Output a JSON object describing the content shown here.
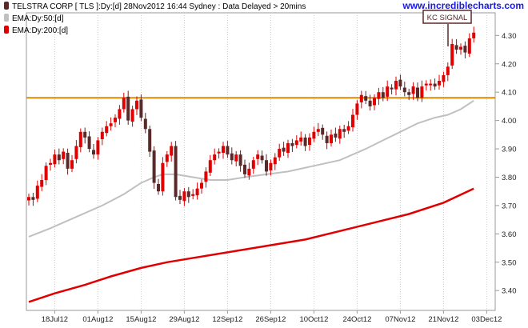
{
  "legend": {
    "items": [
      {
        "label": "TELSTRA CORP [ TLS ]:Dy:[d]  28Nov2012 16:44  Sydney : Data Delayed > 20mins",
        "color": "#5a2a2a"
      },
      {
        "label": "EMA:Dy:50:[d]",
        "color": "#c0c0c0"
      },
      {
        "label": "EMA:Dy:200:[d]",
        "color": "#e00000"
      }
    ]
  },
  "watermark": "www.incrediblecharts.com",
  "annotation": {
    "label": "KC SIGNAL"
  },
  "colors": {
    "up": "#e00000",
    "down": "#5a2a2a",
    "ema50": "#c0c0c0",
    "ema200": "#e00000",
    "level": "#e08a00",
    "grid": "#c8c8c8",
    "watermark": "#1a1aee"
  },
  "chart_data": {
    "type": "candlestick",
    "ylim": [
      3.33,
      4.38
    ],
    "yticks": [
      "4.30",
      "4.20",
      "4.10",
      "4.00",
      "3.90",
      "3.80",
      "3.70",
      "3.60",
      "3.50",
      "3.40"
    ],
    "xticks": [
      "18Jul12",
      "01Aug12",
      "15Aug12",
      "29Aug12",
      "12Sep12",
      "26Sep12",
      "10Oct12",
      "24Oct12",
      "07Nov12",
      "21Nov12",
      "03Dec12"
    ],
    "horizontal_level": 4.08,
    "series": [
      {
        "name": "TELSTRA CORP [ TLS ]",
        "kind": "ohlc",
        "closes": [
          3.73,
          3.72,
          3.77,
          3.79,
          3.84,
          3.85,
          3.88,
          3.86,
          3.89,
          3.83,
          3.86,
          3.91,
          3.96,
          3.94,
          3.9,
          3.88,
          3.93,
          3.96,
          3.98,
          3.99,
          4.01,
          4.04,
          4.08,
          4.0,
          4.04,
          4.07,
          4.01,
          3.97,
          3.89,
          3.78,
          3.75,
          3.85,
          3.88,
          3.91,
          3.73,
          3.72,
          3.75,
          3.73,
          3.74,
          3.76,
          3.78,
          3.82,
          3.86,
          3.88,
          3.89,
          3.91,
          3.88,
          3.86,
          3.88,
          3.84,
          3.81,
          3.83,
          3.86,
          3.88,
          3.86,
          3.82,
          3.85,
          3.87,
          3.9,
          3.89,
          3.92,
          3.91,
          3.93,
          3.94,
          3.91,
          3.94,
          3.96,
          3.97,
          3.95,
          3.92,
          3.95,
          3.94,
          3.97,
          3.96,
          3.98,
          4.02,
          4.06,
          4.09,
          4.07,
          4.05,
          4.08,
          4.1,
          4.08,
          4.12,
          4.11,
          4.14,
          4.12,
          4.1,
          4.09,
          4.12,
          4.08,
          4.12,
          4.13,
          4.13,
          4.12,
          4.14,
          4.16,
          4.19,
          4.27,
          4.25,
          4.26,
          4.24,
          4.29,
          4.31
        ]
      },
      {
        "name": "EMA:Dy:50",
        "points": [
          [
            0,
            3.59
          ],
          [
            5,
            3.62
          ],
          [
            11,
            3.66
          ],
          [
            17,
            3.7
          ],
          [
            22,
            3.74
          ],
          [
            26,
            3.78
          ],
          [
            29,
            3.8
          ],
          [
            31,
            3.81
          ],
          [
            34,
            3.81
          ],
          [
            38,
            3.8
          ],
          [
            42,
            3.79
          ],
          [
            46,
            3.79
          ],
          [
            50,
            3.8
          ],
          [
            55,
            3.81
          ],
          [
            60,
            3.82
          ],
          [
            66,
            3.84
          ],
          [
            72,
            3.86
          ],
          [
            78,
            3.9
          ],
          [
            82,
            3.93
          ],
          [
            86,
            3.96
          ],
          [
            90,
            3.99
          ],
          [
            94,
            4.01
          ],
          [
            97,
            4.02
          ],
          [
            100,
            4.04
          ],
          [
            103,
            4.07
          ]
        ]
      },
      {
        "name": "EMA:Dy:200",
        "points": [
          [
            0,
            3.36
          ],
          [
            6,
            3.39
          ],
          [
            13,
            3.42
          ],
          [
            19,
            3.45
          ],
          [
            26,
            3.48
          ],
          [
            32,
            3.5
          ],
          [
            40,
            3.52
          ],
          [
            48,
            3.54
          ],
          [
            56,
            3.56
          ],
          [
            64,
            3.58
          ],
          [
            72,
            3.61
          ],
          [
            80,
            3.64
          ],
          [
            88,
            3.67
          ],
          [
            96,
            3.71
          ],
          [
            103,
            3.76
          ]
        ]
      }
    ]
  }
}
